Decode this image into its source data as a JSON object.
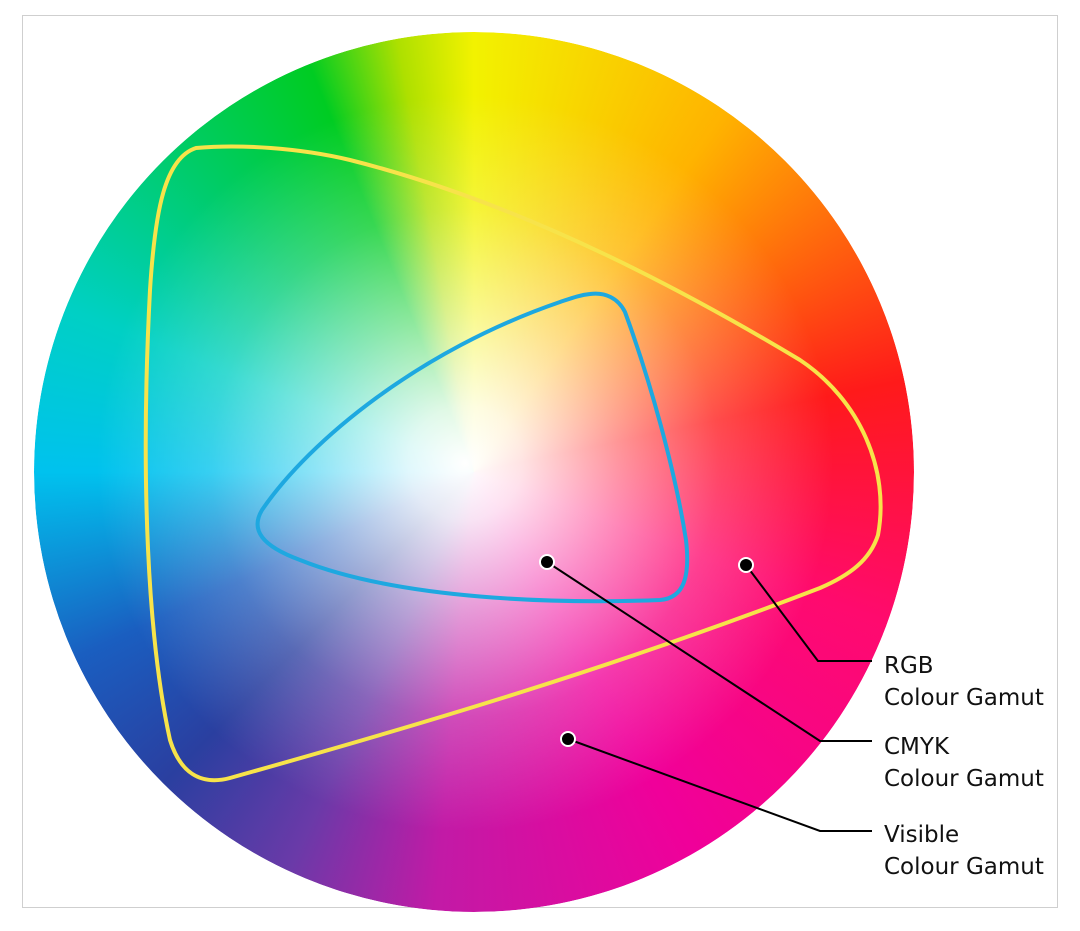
{
  "colors": {
    "rgb_outline": "#f7e34a",
    "cmyk_outline": "#1ea8e0",
    "leader_line": "#000000",
    "marker_fill": "#000000",
    "marker_ring": "#ffffff",
    "frame_border": "#cfcfcf"
  },
  "labels": {
    "rgb": {
      "line1": "RGB",
      "line2": "Colour Gamut"
    },
    "cmyk": {
      "line1": "CMYK",
      "line2": "Colour Gamut"
    },
    "visible": {
      "line1": "Visible",
      "line2": "Colour Gamut"
    }
  }
}
